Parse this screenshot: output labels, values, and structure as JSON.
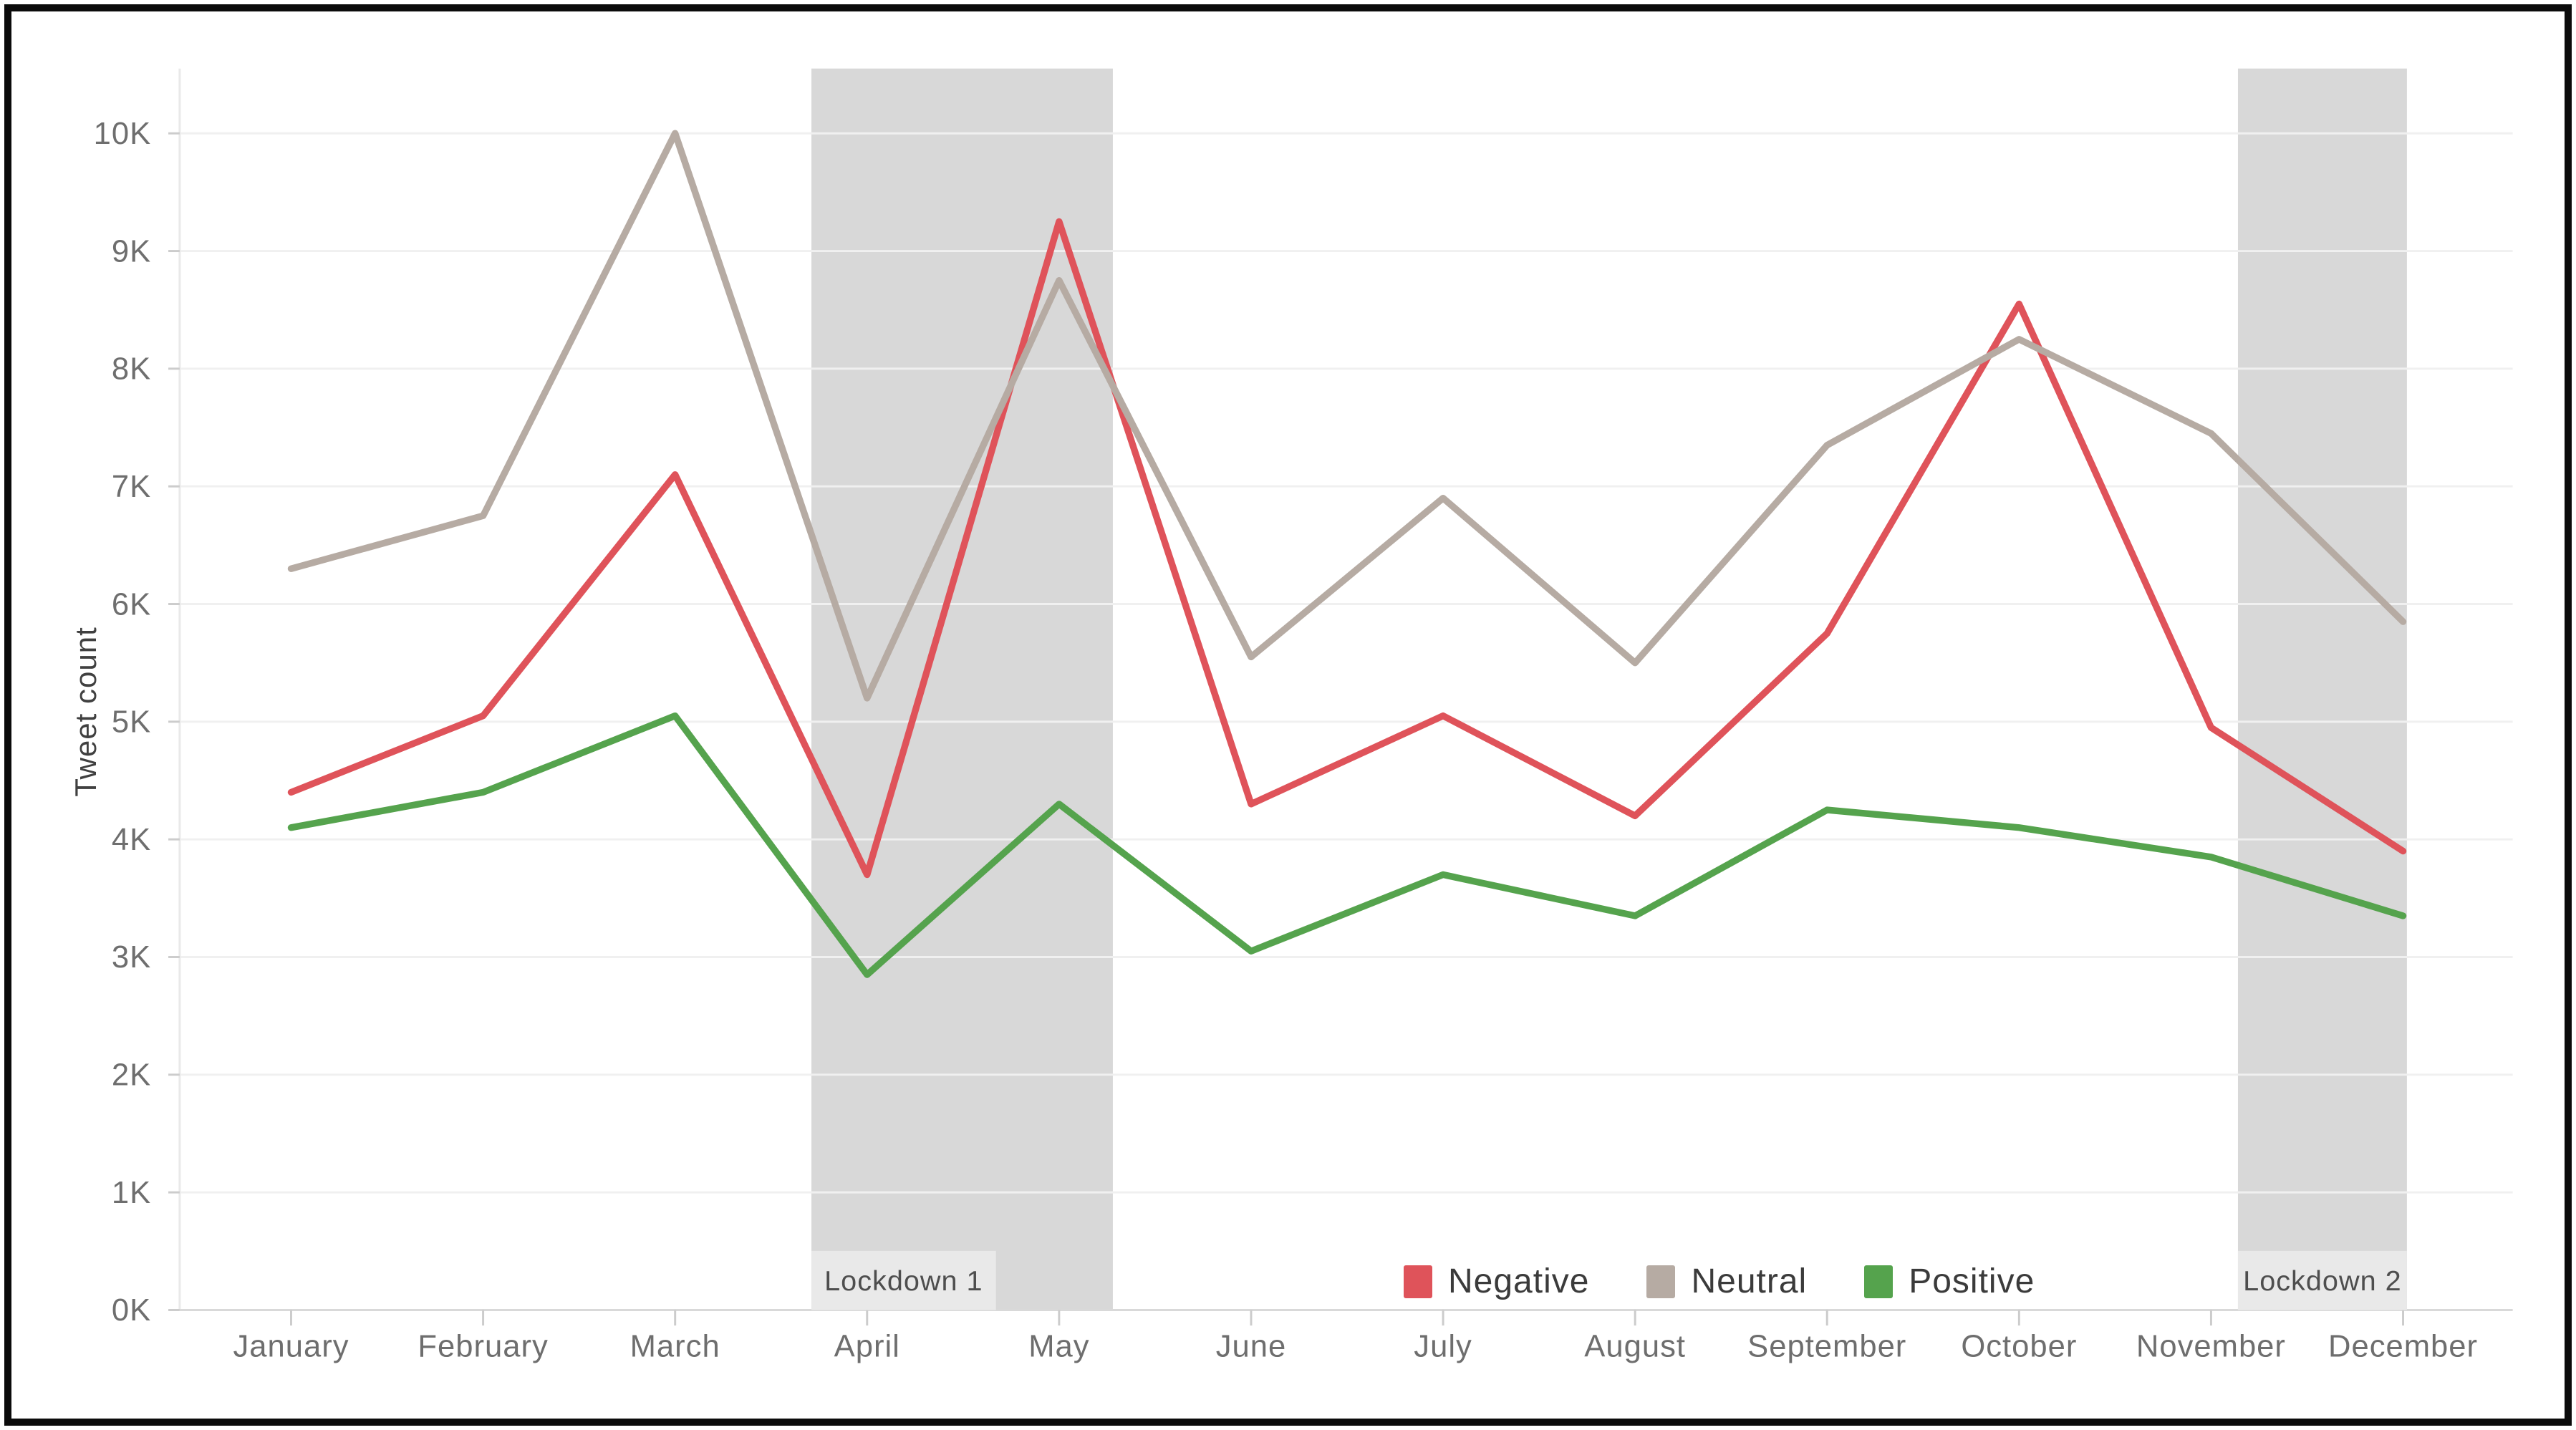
{
  "figure": {
    "ylabel": "Tweet count"
  },
  "chart_data": {
    "type": "line",
    "title": "",
    "xlabel": "",
    "ylabel": "Tweet count",
    "categories": [
      "January",
      "February",
      "March",
      "April",
      "May",
      "June",
      "July",
      "August",
      "September",
      "October",
      "November",
      "December"
    ],
    "y_ticks": [
      "0K",
      "1K",
      "2K",
      "3K",
      "4K",
      "5K",
      "6K",
      "7K",
      "8K",
      "9K",
      "10K"
    ],
    "ylim": [
      0,
      10550
    ],
    "grid": true,
    "legend_position": "bottom-center",
    "series": [
      {
        "name": "Negative",
        "color": "#df535a",
        "values": [
          4400,
          5050,
          7100,
          3700,
          9250,
          4300,
          5050,
          4200,
          5750,
          8550,
          4950,
          3900
        ]
      },
      {
        "name": "Neutral",
        "color": "#b6aba3",
        "values": [
          6300,
          6750,
          10000,
          5200,
          8750,
          5550,
          6900,
          5500,
          7350,
          8250,
          7450,
          5850
        ]
      },
      {
        "name": "Positive",
        "color": "#55a34d",
        "values": [
          4100,
          4400,
          5050,
          2850,
          4300,
          3050,
          3700,
          3350,
          4250,
          4100,
          3850,
          3350
        ]
      }
    ],
    "bands": [
      {
        "label": "Lockdown 1",
        "start_month_index": 2.71,
        "end_month_index": 4.28
      },
      {
        "label": "Lockdown 2",
        "start_month_index": 10.14,
        "end_month_index": 11.02
      }
    ],
    "colors": {
      "band": "#d8d8d8",
      "chip_bg": "#e9e9e9",
      "chip_text": "#4e4e4e",
      "grid": "#f0f0f0",
      "axis": "#d9d9d9",
      "y_axis": "#e9e9e9",
      "tick": "#cccccc",
      "tick_label": "#6e6e6e",
      "legend_text": "#3b3b3b",
      "frame_border": "#0b0b0b"
    }
  }
}
